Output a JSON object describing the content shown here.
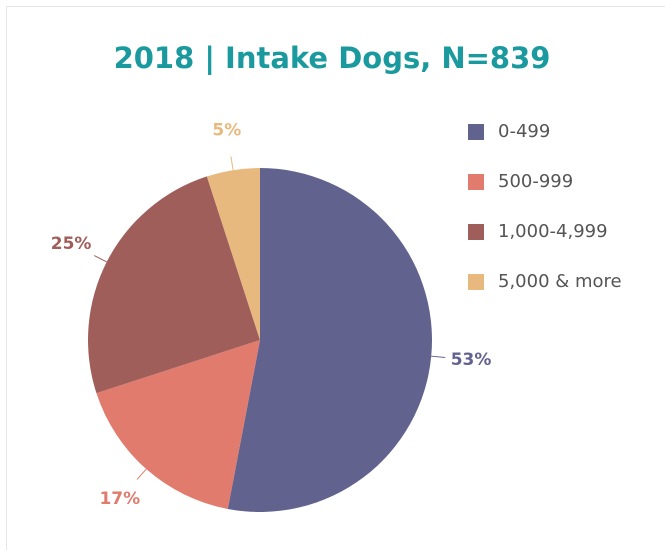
{
  "chart_data": {
    "type": "pie",
    "title": "2018 | Intake Dogs, N=839",
    "categories": [
      "0-499",
      "500-999",
      "1,000-4,999",
      "5,000 & more"
    ],
    "values": [
      53,
      17,
      25,
      5
    ],
    "value_labels": [
      "53%",
      "17%",
      "25%",
      "5%"
    ],
    "colors": [
      "#62628f",
      "#e07b6e",
      "#a05e5a",
      "#e8b97e"
    ],
    "legend": "right"
  }
}
